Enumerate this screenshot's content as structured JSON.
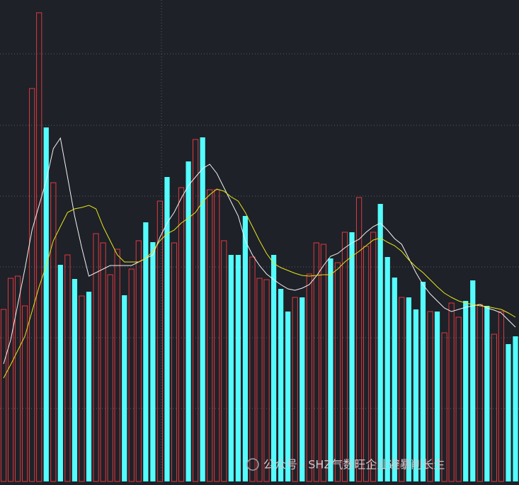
{
  "chart_data": {
    "type": "bar",
    "ylim": [
      0,
      680
    ],
    "yticks": [
      103,
      203,
      303,
      403,
      503,
      604
    ],
    "grid": true,
    "series": [
      {
        "color": "#e0393e",
        "fill": "none",
        "values": [
          243,
          287,
          290,
          248,
          555,
          662,
          null,
          422,
          null,
          320,
          null,
          262,
          null,
          350,
          337,
          292,
          328,
          null,
          300,
          340,
          null,
          null,
          396,
          null,
          337,
          415,
          null,
          483,
          null,
          412,
          412,
          340,
          null,
          null,
          null,
          317,
          287,
          285,
          null,
          null,
          null,
          260,
          null,
          293,
          337,
          335,
          null,
          309,
          352,
          null,
          401,
          332,
          352,
          null,
          null,
          null,
          260,
          null,
          null,
          null,
          240,
          null,
          210,
          252,
          232,
          null,
          null,
          250,
          null,
          208,
          240,
          null,
          null
        ]
      },
      {
        "color": "#54fcfc",
        "fill": "#54fcfc",
        "values": [
          null,
          null,
          null,
          null,
          null,
          null,
          500,
          null,
          306,
          null,
          286,
          null,
          268,
          null,
          null,
          null,
          null,
          263,
          null,
          null,
          366,
          338,
          null,
          430,
          null,
          null,
          452,
          null,
          486,
          null,
          null,
          null,
          320,
          320,
          375,
          null,
          null,
          null,
          320,
          272,
          240,
          null,
          260,
          null,
          null,
          null,
          315,
          null,
          null,
          352,
          null,
          null,
          null,
          392,
          317,
          288,
          null,
          260,
          243,
          282,
          null,
          240,
          null,
          null,
          null,
          255,
          284,
          null,
          248,
          null,
          null,
          194,
          205
        ]
      },
      {
        "type": "line",
        "color": "#f2f2f2",
        "values": [
          166,
          200,
          250,
          300,
          355,
          390,
          425,
          470,
          485,
          430,
          375,
          330,
          290,
          295,
          300,
          305,
          305,
          305,
          305,
          310,
          315,
          320,
          345,
          365,
          380,
          400,
          418,
          430,
          442,
          448,
          435,
          415,
          395,
          375,
          340,
          320,
          305,
          293,
          285,
          278,
          272,
          270,
          273,
          278,
          290,
          305,
          318,
          322,
          330,
          337,
          342,
          352,
          360,
          365,
          355,
          343,
          335,
          315,
          295,
          278,
          265,
          255,
          245,
          240,
          243,
          246,
          248,
          250,
          245,
          242,
          238,
          228,
          218
        ]
      },
      {
        "type": "line",
        "color": "#e6e61c",
        "values": [
          146,
          165,
          185,
          205,
          240,
          275,
          305,
          340,
          360,
          380,
          385,
          387,
          390,
          385,
          360,
          340,
          320,
          310,
          310,
          310,
          315,
          325,
          340,
          350,
          355,
          365,
          372,
          380,
          395,
          405,
          413,
          410,
          402,
          396,
          380,
          360,
          340,
          322,
          308,
          302,
          298,
          294,
          291,
          290,
          291,
          292,
          292,
          300,
          310,
          318,
          325,
          333,
          341,
          344,
          338,
          333,
          325,
          313,
          303,
          295,
          285,
          275,
          266,
          260,
          255,
          252,
          250,
          248,
          247,
          245,
          243,
          238,
          232
        ]
      }
    ],
    "watermark": "公众号 · SHZ气数旺企业避暴削长生"
  }
}
